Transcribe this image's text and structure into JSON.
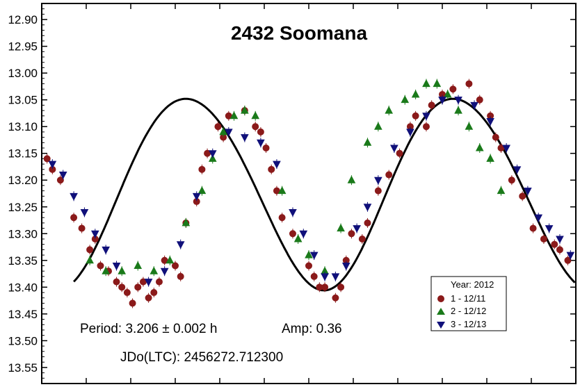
{
  "chart_data": {
    "type": "scatter",
    "title": "2432 Soomana",
    "xlabel": "",
    "ylabel": "",
    "x_range": [
      0,
      1
    ],
    "ylim": [
      12.87,
      13.58
    ],
    "y_inverted": true,
    "y_ticks": [
      12.9,
      12.95,
      13.0,
      13.05,
      13.1,
      13.15,
      13.2,
      13.25,
      13.3,
      13.35,
      13.4,
      13.45,
      13.5,
      13.55
    ],
    "y_tick_labels": [
      "12.90",
      "12.95",
      "13.00",
      "13.05",
      "13.10",
      "13.15",
      "13.20",
      "13.25",
      "13.30",
      "13.35",
      "13.40",
      "13.45",
      "13.50",
      "13.55"
    ],
    "x_minor_ticks": 12,
    "grid": false,
    "annotations": {
      "period": "Period: 3.206 ± 0.002 h",
      "amp": "Amp: 0.36",
      "jdo": "JDo(LTC): 2456272.712300"
    },
    "legend": {
      "title": "Year: 2012",
      "placement": "bottom-right",
      "entries": [
        "1 - 12/11",
        "2 - 12/12",
        "3 - 12/13"
      ]
    },
    "fit_curve": {
      "mean": 13.22,
      "terms": [
        {
          "k": 2,
          "a": 0.17,
          "b": 0.055
        },
        {
          "k": 4,
          "a": 0.003,
          "b": 0.008
        }
      ]
    },
    "colors": {
      "series1": "#8b1a1a",
      "series2": "#1a7a1a",
      "series3": "#10107a",
      "curve": "#000000"
    },
    "series": [
      {
        "name": "1 - 12/11",
        "marker": "circle",
        "x": [
          0.01,
          0.02,
          0.035,
          0.06,
          0.075,
          0.09,
          0.1,
          0.11,
          0.125,
          0.14,
          0.15,
          0.16,
          0.17,
          0.18,
          0.19,
          0.2,
          0.21,
          0.22,
          0.23,
          0.25,
          0.26,
          0.27,
          0.29,
          0.3,
          0.31,
          0.33,
          0.34,
          0.35,
          0.38,
          0.4,
          0.41,
          0.42,
          0.43,
          0.44,
          0.45,
          0.47,
          0.5,
          0.51,
          0.52,
          0.53,
          0.55,
          0.56,
          0.57,
          0.58,
          0.6,
          0.61,
          0.63,
          0.65,
          0.67,
          0.69,
          0.7,
          0.72,
          0.73,
          0.75,
          0.77,
          0.8,
          0.82,
          0.84,
          0.85,
          0.86,
          0.88,
          0.9,
          0.92,
          0.94,
          0.96,
          0.97,
          0.985
        ],
        "y": [
          13.16,
          13.18,
          13.2,
          13.27,
          13.29,
          13.33,
          13.31,
          13.36,
          13.37,
          13.39,
          13.4,
          13.41,
          13.43,
          13.4,
          13.39,
          13.42,
          13.41,
          13.39,
          13.35,
          13.36,
          13.38,
          13.28,
          13.24,
          13.18,
          13.15,
          13.1,
          13.12,
          13.08,
          13.07,
          13.1,
          13.11,
          13.14,
          13.18,
          13.22,
          13.27,
          13.3,
          13.36,
          13.38,
          13.4,
          13.4,
          13.42,
          13.4,
          13.35,
          13.3,
          13.31,
          13.28,
          13.22,
          13.19,
          13.15,
          13.1,
          13.08,
          13.1,
          13.06,
          13.04,
          13.03,
          13.02,
          13.05,
          13.08,
          13.12,
          13.14,
          13.2,
          13.23,
          13.29,
          13.31,
          13.32,
          13.33,
          13.35
        ]
      },
      {
        "name": "2 - 12/12",
        "marker": "triangle-up",
        "x": [
          0.09,
          0.12,
          0.15,
          0.18,
          0.21,
          0.24,
          0.27,
          0.3,
          0.32,
          0.34,
          0.36,
          0.38,
          0.4,
          0.45,
          0.48,
          0.5,
          0.53,
          0.56,
          0.58,
          0.61,
          0.63,
          0.65,
          0.68,
          0.7,
          0.72,
          0.74,
          0.76,
          0.78,
          0.8,
          0.82,
          0.84,
          0.86
        ],
        "y": [
          13.35,
          13.37,
          13.37,
          13.36,
          13.37,
          13.35,
          13.28,
          13.22,
          13.16,
          13.11,
          13.08,
          13.07,
          13.08,
          13.22,
          13.31,
          13.34,
          13.37,
          13.29,
          13.2,
          13.13,
          13.1,
          13.07,
          13.05,
          13.04,
          13.02,
          13.02,
          13.04,
          13.07,
          13.1,
          13.14,
          13.16,
          13.22
        ]
      },
      {
        "name": "3 - 12/13",
        "marker": "triangle-down",
        "x": [
          0.02,
          0.04,
          0.06,
          0.08,
          0.1,
          0.12,
          0.14,
          0.2,
          0.23,
          0.26,
          0.29,
          0.32,
          0.35,
          0.38,
          0.41,
          0.44,
          0.47,
          0.49,
          0.51,
          0.53,
          0.55,
          0.57,
          0.59,
          0.61,
          0.63,
          0.66,
          0.69,
          0.72,
          0.75,
          0.78,
          0.81,
          0.84,
          0.87,
          0.89,
          0.91,
          0.93,
          0.95,
          0.97,
          0.99
        ],
        "y": [
          13.17,
          13.19,
          13.23,
          13.26,
          13.3,
          13.33,
          13.36,
          13.39,
          13.37,
          13.32,
          13.23,
          13.15,
          13.11,
          13.12,
          13.13,
          13.17,
          13.26,
          13.3,
          13.34,
          13.38,
          13.38,
          13.36,
          13.29,
          13.25,
          13.2,
          13.14,
          13.11,
          13.08,
          13.05,
          13.05,
          13.06,
          13.09,
          13.14,
          13.18,
          13.22,
          13.27,
          13.29,
          13.31,
          13.34
        ]
      }
    ]
  }
}
